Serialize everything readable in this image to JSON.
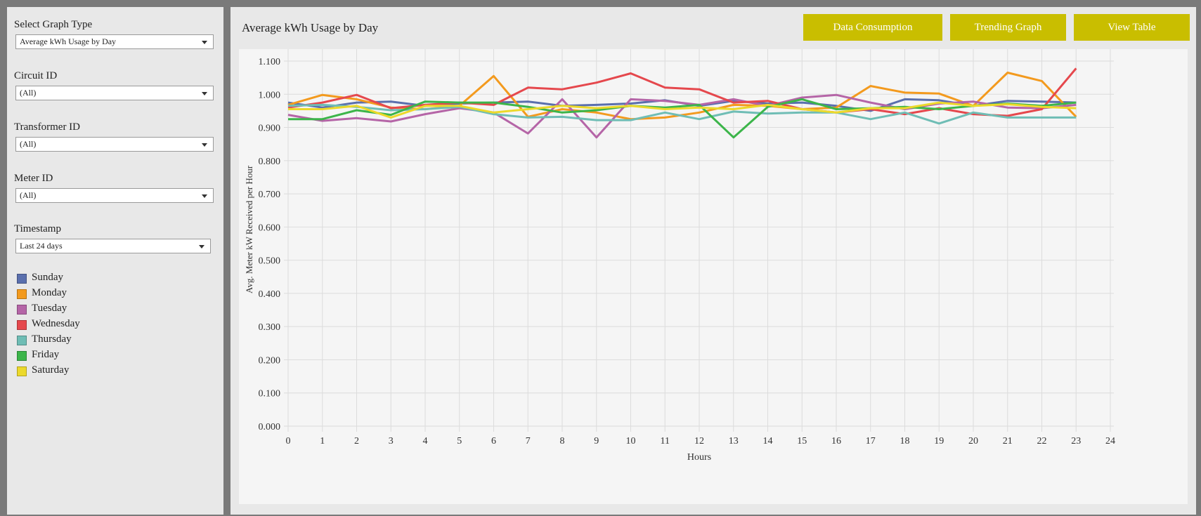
{
  "sidebar": {
    "filters": [
      {
        "label": "Select Graph Type",
        "value": "Average kWh Usage by Day"
      },
      {
        "label": "Circuit ID",
        "value": "(All)"
      },
      {
        "label": "Transformer ID",
        "value": "(All)"
      },
      {
        "label": "Meter ID",
        "value": "(All)"
      },
      {
        "label": "Timestamp",
        "value": "Last 24 days"
      }
    ],
    "legend": [
      {
        "name": "Sunday",
        "color": "#5a6fad"
      },
      {
        "name": "Monday",
        "color": "#f39a1e"
      },
      {
        "name": "Tuesday",
        "color": "#b565a7"
      },
      {
        "name": "Wednesday",
        "color": "#e5484d"
      },
      {
        "name": "Thursday",
        "color": "#6fbdb5"
      },
      {
        "name": "Friday",
        "color": "#3cb54a"
      },
      {
        "name": "Saturday",
        "color": "#ecd92b"
      }
    ],
    "icons": {
      "dropdown": "chevron-down-icon"
    }
  },
  "header": {
    "title": "Average kWh Usage by Day",
    "buttons": {
      "data_consumption": "Data Consumption",
      "trending_graph": "Trending Graph",
      "view_table": "View Table"
    },
    "button_color": "#c9be00"
  },
  "chart_data": {
    "type": "line",
    "title": "",
    "xlabel": "Hours",
    "ylabel": "Avg. Meter kW Received per Hour",
    "xlim": [
      0,
      24
    ],
    "ylim": [
      0,
      1.1
    ],
    "xticks": [
      "0",
      "1",
      "2",
      "3",
      "4",
      "5",
      "6",
      "7",
      "8",
      "9",
      "10",
      "11",
      "12",
      "13",
      "14",
      "15",
      "16",
      "17",
      "18",
      "19",
      "20",
      "21",
      "22",
      "23",
      "24"
    ],
    "yticks": [
      "0.000",
      "0.100",
      "0.200",
      "0.300",
      "0.400",
      "0.500",
      "0.600",
      "0.700",
      "0.800",
      "0.900",
      "1.000",
      "1.100"
    ],
    "grid": true,
    "legend_position": "left-sidebar",
    "x": [
      0,
      1,
      2,
      3,
      4,
      5,
      6,
      7,
      8,
      9,
      10,
      11,
      12,
      13,
      14,
      15,
      16,
      17,
      18,
      19,
      20,
      21,
      22,
      23
    ],
    "series": [
      {
        "name": "Sunday",
        "color": "#5a6fad",
        "values": [
          0.975,
          0.96,
          0.975,
          0.978,
          0.965,
          0.972,
          0.975,
          0.978,
          0.965,
          0.968,
          0.972,
          0.982,
          0.965,
          0.98,
          0.972,
          0.975,
          0.965,
          0.95,
          0.985,
          0.982,
          0.965,
          0.98,
          0.978,
          0.975
        ]
      },
      {
        "name": "Monday",
        "color": "#f39a1e",
        "values": [
          0.968,
          0.998,
          0.985,
          0.96,
          0.955,
          0.965,
          1.055,
          0.932,
          0.955,
          0.945,
          0.925,
          0.93,
          0.945,
          0.968,
          0.965,
          0.955,
          0.96,
          1.025,
          1.005,
          1.002,
          0.965,
          1.065,
          1.04,
          0.932
        ]
      },
      {
        "name": "Tuesday",
        "color": "#b565a7",
        "values": [
          0.938,
          0.92,
          0.928,
          0.918,
          0.94,
          0.958,
          0.945,
          0.882,
          0.985,
          0.87,
          0.985,
          0.98,
          0.968,
          0.985,
          0.965,
          0.99,
          0.998,
          0.975,
          0.955,
          0.972,
          0.978,
          0.96,
          0.958,
          0.968
        ]
      },
      {
        "name": "Wednesday",
        "color": "#e5484d",
        "values": [
          0.96,
          0.975,
          0.998,
          0.958,
          0.968,
          0.975,
          0.968,
          1.02,
          1.015,
          1.035,
          1.063,
          1.02,
          1.015,
          0.975,
          0.98,
          0.955,
          0.945,
          0.955,
          0.94,
          0.958,
          0.94,
          0.935,
          0.955,
          1.078
        ]
      },
      {
        "name": "Thursday",
        "color": "#6fbdb5",
        "values": [
          0.965,
          0.968,
          0.962,
          0.952,
          0.955,
          0.962,
          0.94,
          0.93,
          0.932,
          0.922,
          0.922,
          0.945,
          0.925,
          0.948,
          0.942,
          0.945,
          0.945,
          0.925,
          0.945,
          0.912,
          0.945,
          0.93,
          0.93,
          0.93
        ]
      },
      {
        "name": "Friday",
        "color": "#3cb54a",
        "values": [
          0.925,
          0.925,
          0.952,
          0.938,
          0.978,
          0.975,
          0.975,
          0.962,
          0.945,
          0.952,
          0.965,
          0.96,
          0.968,
          0.87,
          0.962,
          0.985,
          0.955,
          0.958,
          0.962,
          0.955,
          0.965,
          0.972,
          0.965,
          0.975
        ]
      },
      {
        "name": "Saturday",
        "color": "#ecd92b",
        "values": [
          0.955,
          0.955,
          0.965,
          0.93,
          0.965,
          0.965,
          0.945,
          0.955,
          0.965,
          0.958,
          0.965,
          0.955,
          0.96,
          0.955,
          0.968,
          0.955,
          0.945,
          0.958,
          0.958,
          0.975,
          0.965,
          0.97,
          0.962,
          0.958
        ]
      }
    ]
  }
}
